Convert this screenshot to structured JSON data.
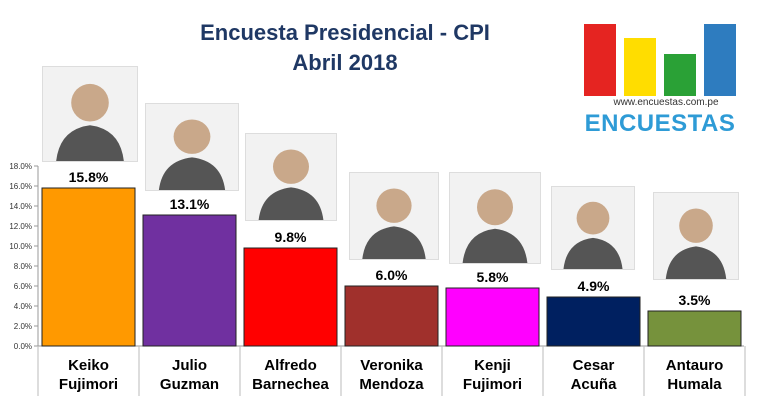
{
  "title": {
    "line1": "Encuesta Presidencial - CPI",
    "line2": "Abril 2018"
  },
  "logo": {
    "url": "www.encuestas.com.pe",
    "brand": "ENCUESTAS"
  },
  "chart_data": {
    "type": "bar",
    "categories": [
      [
        "Keiko",
        "Fujimori"
      ],
      [
        "Julio",
        "Guzman"
      ],
      [
        "Alfredo",
        "Barnechea"
      ],
      [
        "Veronika",
        "Mendoza"
      ],
      [
        "Kenji",
        "Fujimori"
      ],
      [
        "Cesar",
        "Acuña"
      ],
      [
        "Antauro",
        "Humala"
      ]
    ],
    "values": [
      15.8,
      13.1,
      9.8,
      6.0,
      5.8,
      4.9,
      3.5
    ],
    "value_labels": [
      "15.8%",
      "13.1%",
      "9.8%",
      "6.0%",
      "5.8%",
      "4.9%",
      "3.5%"
    ],
    "colors": [
      "#ff9900",
      "#7030a0",
      "#ff0000",
      "#a0302c",
      "#ff00ff",
      "#002060",
      "#76923c"
    ],
    "ylim": [
      0,
      18
    ],
    "yticks": [
      "0.0%",
      "2.0%",
      "4.0%",
      "6.0%",
      "8.0%",
      "10.0%",
      "12.0%",
      "14.0%",
      "16.0%",
      "18.0%"
    ],
    "grid": false,
    "legend": "none"
  }
}
